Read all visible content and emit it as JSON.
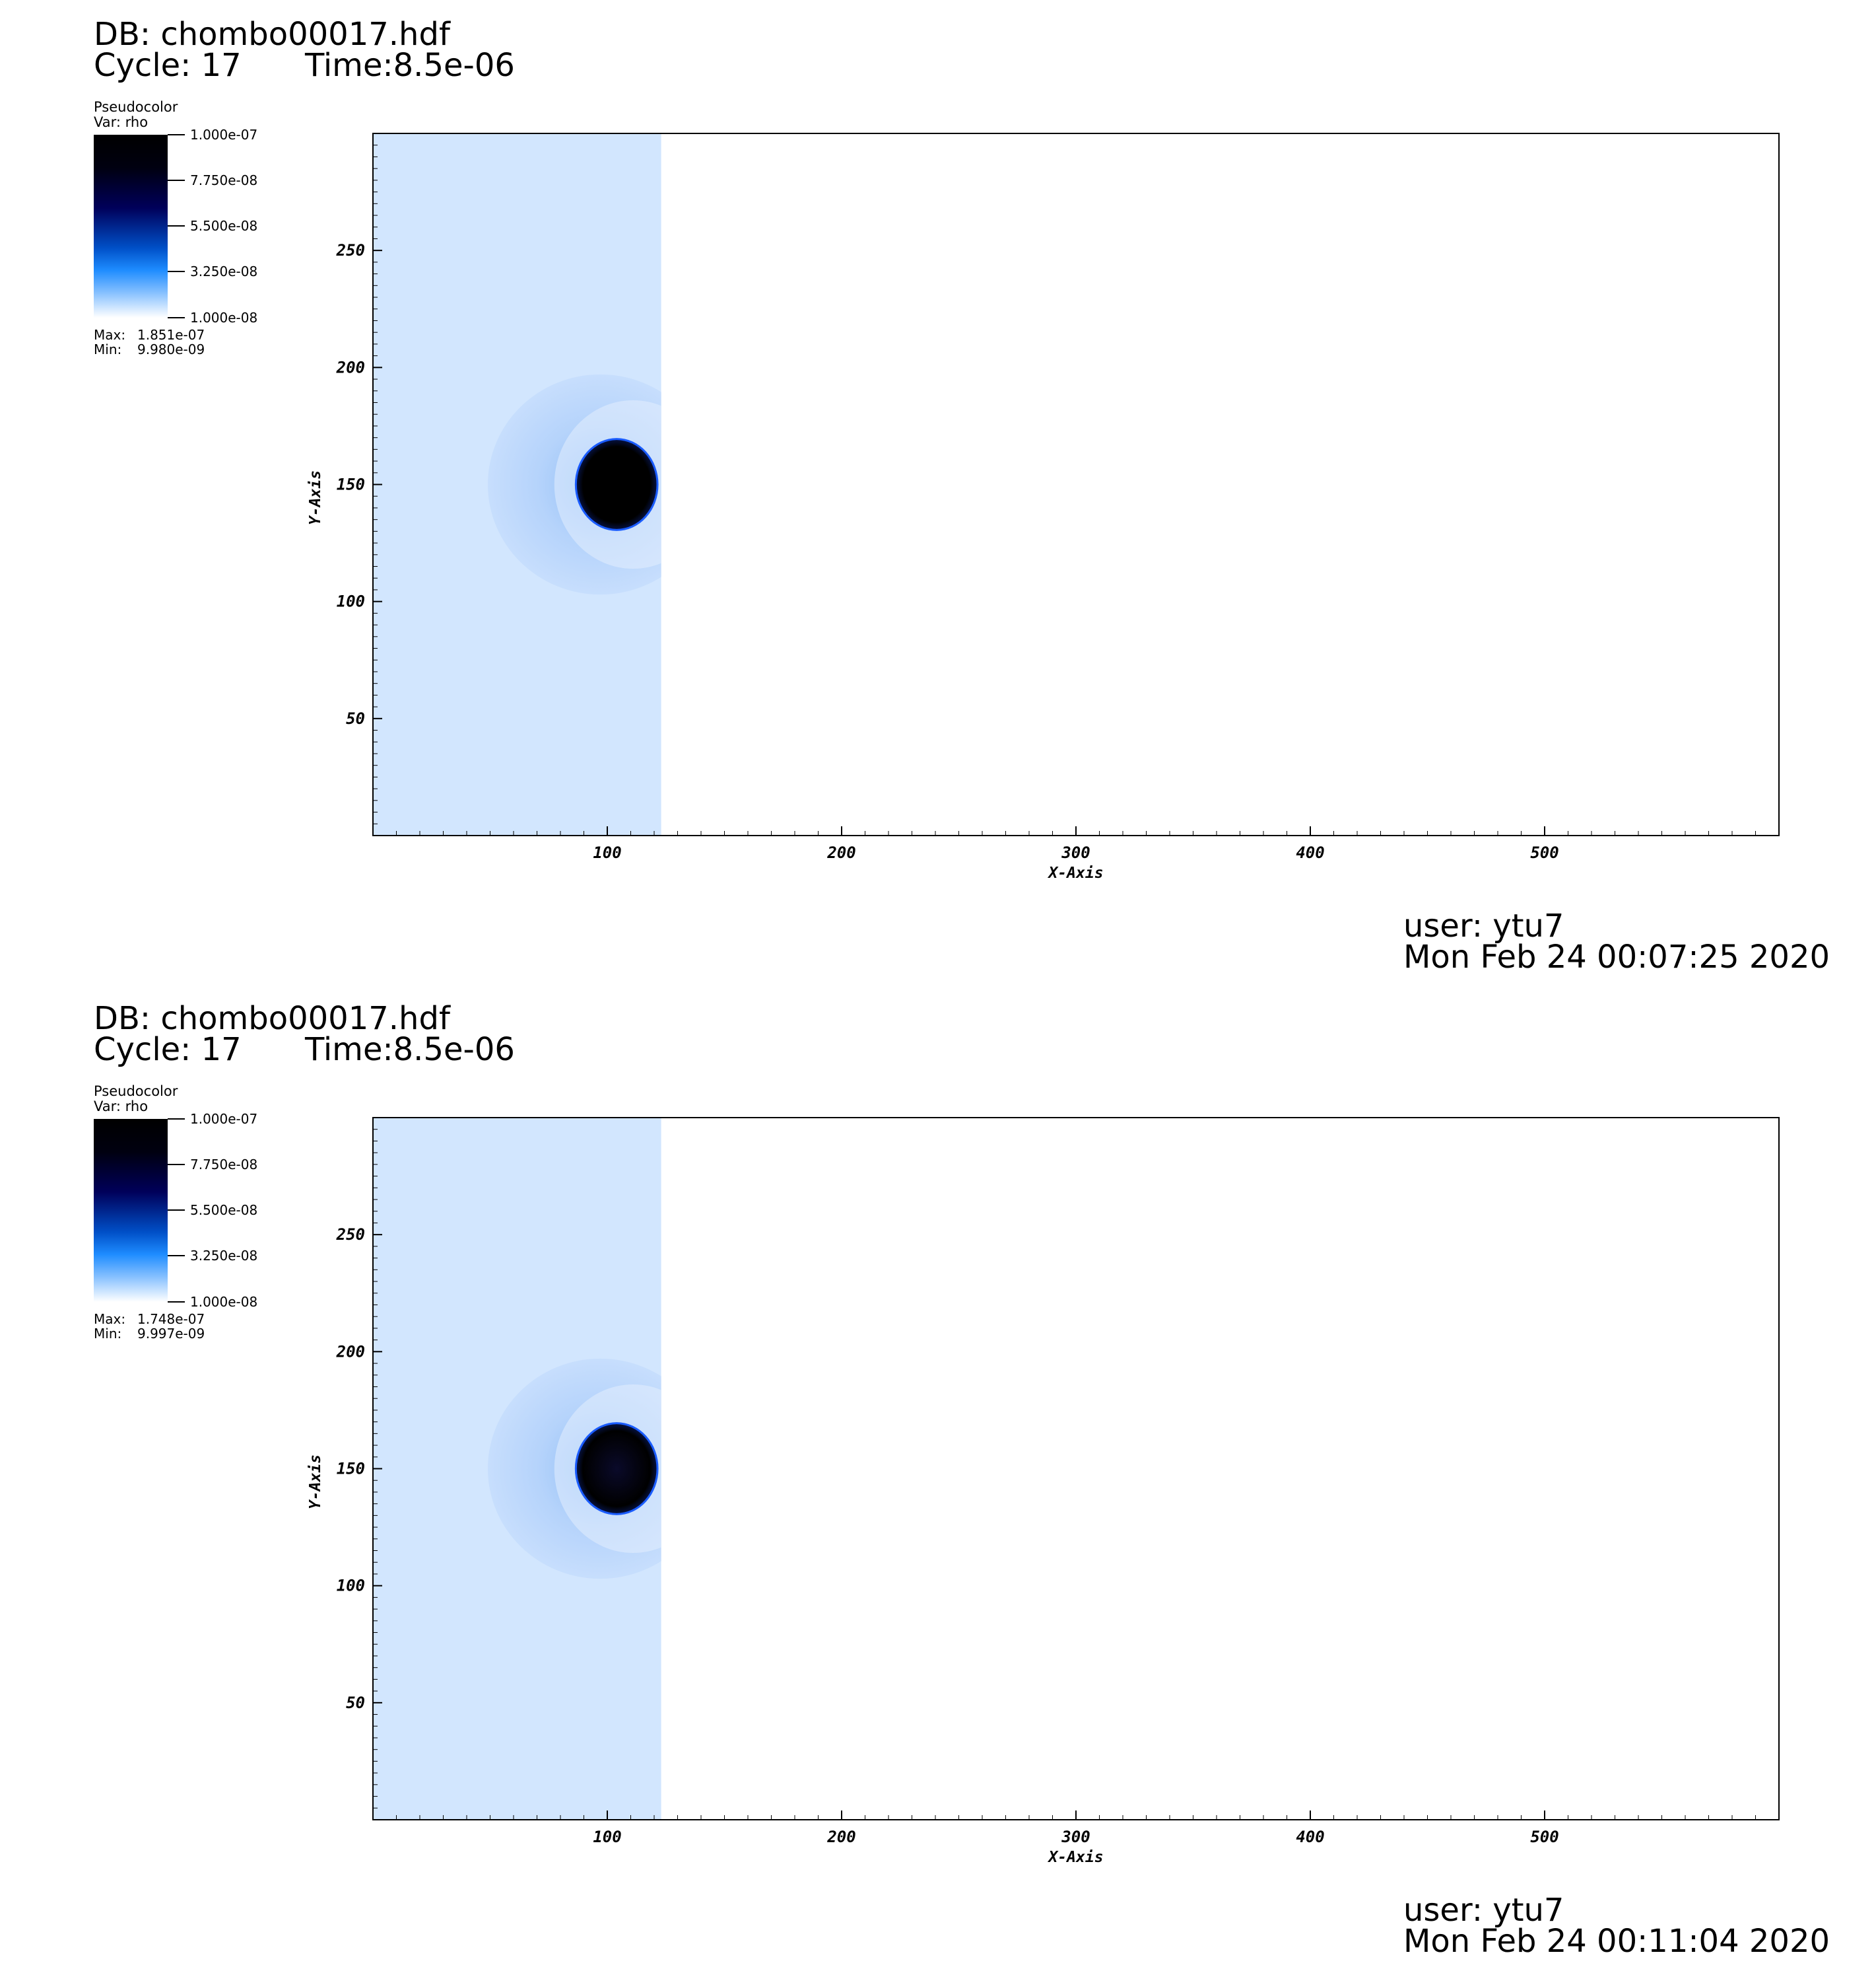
{
  "chart_data": [
    {
      "type": "heatmap",
      "db": "DB: chombo00017.hdf",
      "cycle": "Cycle: 17",
      "time": "Time:8.5e-06",
      "legend_title": "Pseudocolor",
      "legend_var": "Var: rho",
      "colorbar_ticks": [
        "1.000e-07",
        "7.750e-08",
        "5.500e-08",
        "3.250e-08",
        "1.000e-08"
      ],
      "max_label": "Max:",
      "max_value": "1.851e-07",
      "min_label": "Min:",
      "min_value": "9.980e-09",
      "xlabel": "X-Axis",
      "ylabel": "Y-Axis",
      "xlim": [
        0,
        600
      ],
      "ylim": [
        0,
        300
      ],
      "xticks": [
        "100",
        "200",
        "300",
        "400",
        "500"
      ],
      "yticks": [
        "50",
        "100",
        "150",
        "200",
        "250"
      ],
      "filled_region_x": [
        0,
        123
      ],
      "blob_center": [
        104,
        150
      ],
      "blob_radius_x": 17,
      "blob_radius_y": 19,
      "bow_center": [
        97,
        150
      ],
      "bow_radius": 48,
      "user": "user: ytu7",
      "date": "Mon Feb 24 00:07:25 2020"
    },
    {
      "type": "heatmap",
      "db": "DB: chombo00017.hdf",
      "cycle": "Cycle: 17",
      "time": "Time:8.5e-06",
      "legend_title": "Pseudocolor",
      "legend_var": "Var: rho",
      "colorbar_ticks": [
        "1.000e-07",
        "7.750e-08",
        "5.500e-08",
        "3.250e-08",
        "1.000e-08"
      ],
      "max_label": "Max:",
      "max_value": "1.748e-07",
      "min_label": "Min:",
      "min_value": "9.997e-09",
      "xlabel": "X-Axis",
      "ylabel": "Y-Axis",
      "xlim": [
        0,
        600
      ],
      "ylim": [
        0,
        300
      ],
      "xticks": [
        "100",
        "200",
        "300",
        "400",
        "500"
      ],
      "yticks": [
        "50",
        "100",
        "150",
        "200",
        "250"
      ],
      "filled_region_x": [
        0,
        123
      ],
      "blob_center": [
        104,
        150
      ],
      "blob_radius_x": 17,
      "blob_radius_y": 19,
      "bow_center": [
        97,
        150
      ],
      "bow_radius": 48,
      "user": "user: ytu7",
      "date": "Mon Feb 24 00:11:04 2020"
    }
  ],
  "colors": {
    "background_fluid": "#d2e6fe",
    "blob": "#000000",
    "blob_edge": "#1a5cff",
    "bow": "#b5d3fb"
  }
}
